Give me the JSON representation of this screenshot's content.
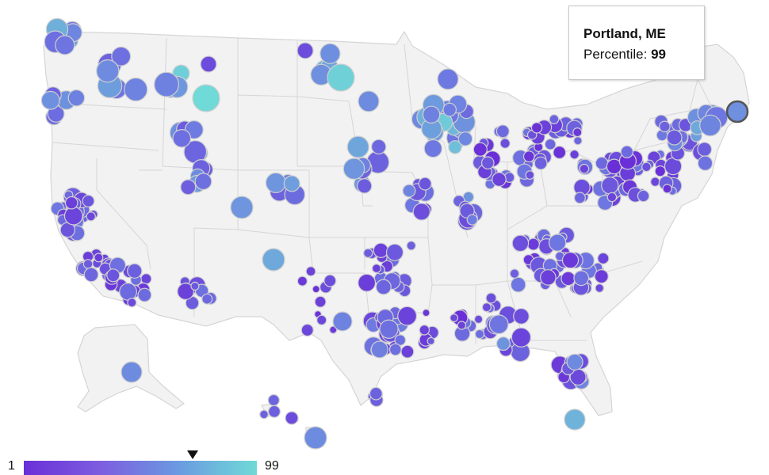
{
  "tooltip": {
    "city": "Portland, ME",
    "label": "Percentile:",
    "value": "99"
  },
  "legend": {
    "min": "1",
    "max": "99",
    "gradient_start": "#6a2fd8",
    "gradient_end": "#6fdad7",
    "marker_value": 72
  },
  "colors": {
    "land": "#f2f2f2",
    "borders": "#d5d5d5",
    "marker_stroke": "#cfcfcf",
    "highlight_stroke": "#555555"
  },
  "highlighted_city": "Portland, ME"
}
